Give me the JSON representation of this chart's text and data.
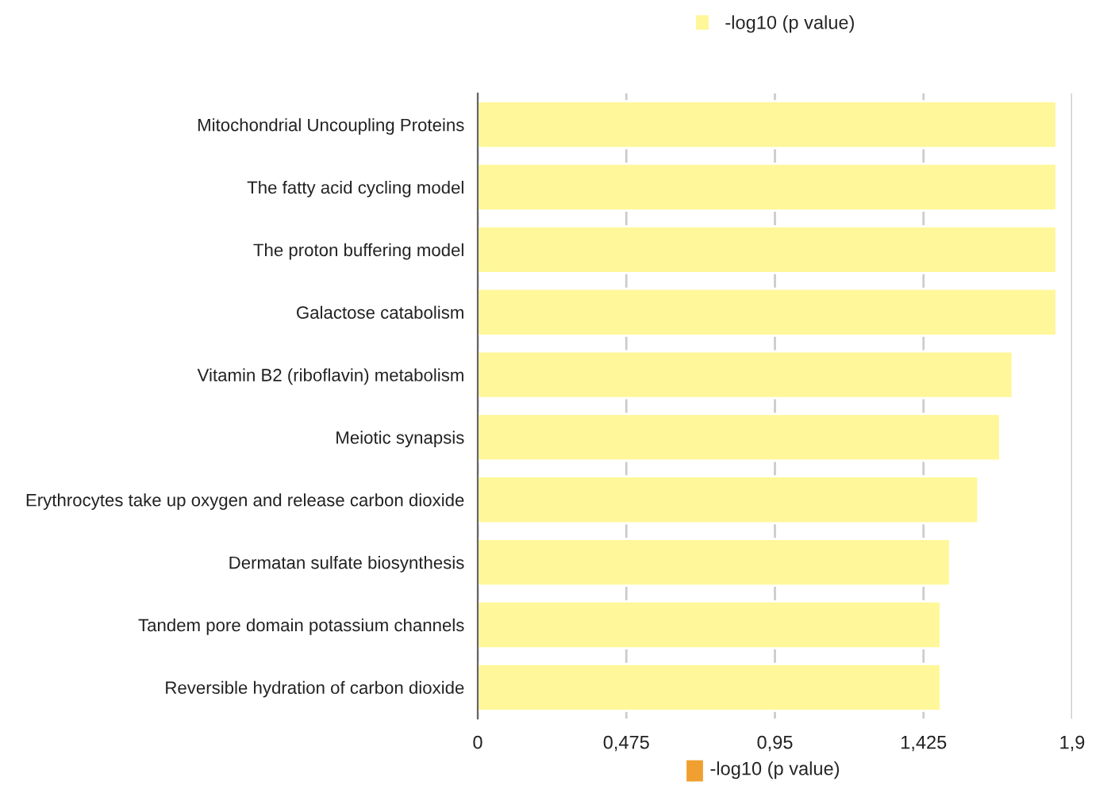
{
  "chart_data": {
    "type": "bar",
    "orientation": "horizontal",
    "categories": [
      "Mitochondrial Uncoupling Proteins",
      "The fatty acid cycling model",
      "The proton buffering model",
      "Galactose catabolism",
      "Vitamin B2 (riboflavin) metabolism",
      "Meiotic synapsis",
      "Erythrocytes take up oxygen and release carbon dioxide",
      "Dermatan sulfate biosynthesis",
      "Tandem pore domain potassium channels",
      "Reversible hydration of carbon dioxide"
    ],
    "series": [
      {
        "name": "-log10 (p value)",
        "color": "#fff799",
        "values": [
          1.85,
          1.85,
          1.85,
          1.85,
          1.71,
          1.67,
          1.6,
          1.51,
          1.48,
          1.48
        ]
      }
    ],
    "xlabel": "-log10 (p value)",
    "xlim": [
      0,
      1.9
    ],
    "xticks": [
      0,
      {
        "value": 0.475,
        "label": "0,475"
      },
      {
        "value": 0.95,
        "label": "0,95"
      },
      {
        "value": 1.425,
        "label": "1,425"
      },
      {
        "value": 1.9,
        "label": "1,9"
      }
    ],
    "grid": "x",
    "legend": "top"
  }
}
